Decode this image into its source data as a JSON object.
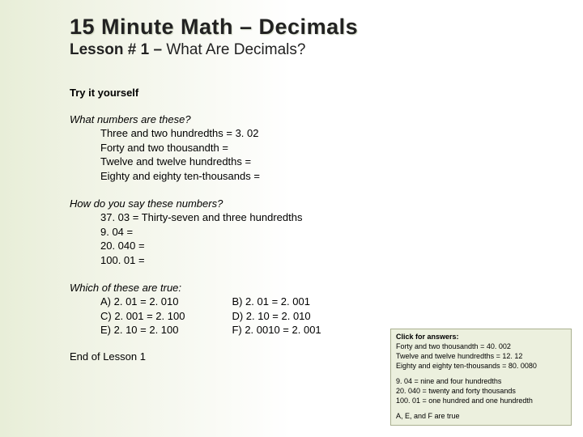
{
  "title": "15 Minute Math – Decimals",
  "subtitle_bold": "Lesson # 1 – ",
  "subtitle_light": "What Are Decimals?",
  "try_label": "Try it yourself",
  "q1": {
    "prompt": "What numbers are these?",
    "items": [
      "Three and two hundredths = 3. 02",
      "Forty and two thousandth =",
      "Twelve and twelve hundredths =",
      "Eighty and eighty ten-thousands ="
    ]
  },
  "q2": {
    "prompt": "How do you say these numbers?",
    "items": [
      "37. 03 = Thirty-seven and three hundredths",
      "9. 04 =",
      "20. 040 =",
      "100. 01 ="
    ]
  },
  "q3": {
    "prompt": "Which of these are true:",
    "left": [
      "A) 2. 01 = 2. 010",
      "C) 2. 001 = 2. 100",
      "E) 2. 10 = 2. 100"
    ],
    "right": [
      "B) 2. 01 = 2. 001",
      "D) 2. 10 = 2. 010",
      "F) 2. 0010 = 2. 001"
    ]
  },
  "end": "End of Lesson 1",
  "answers": {
    "header": "Click for answers:",
    "block1": [
      "Forty and two thousandth = 40. 002",
      "Twelve and twelve hundredths = 12. 12",
      "Eighty and eighty ten-thousands = 80. 0080"
    ],
    "block2": [
      "9. 04 = nine and four hundredths",
      "20. 040 = twenty and forty thousands",
      "100. 01 = one hundred and one hundredth"
    ],
    "block3": [
      "A, E, and F are true"
    ]
  },
  "colors": {
    "bg_left": "#e8eed8",
    "bg_right": "#ffffff",
    "box_bg": "#ecf0de",
    "box_border": "#aab090",
    "text": "#222222"
  }
}
